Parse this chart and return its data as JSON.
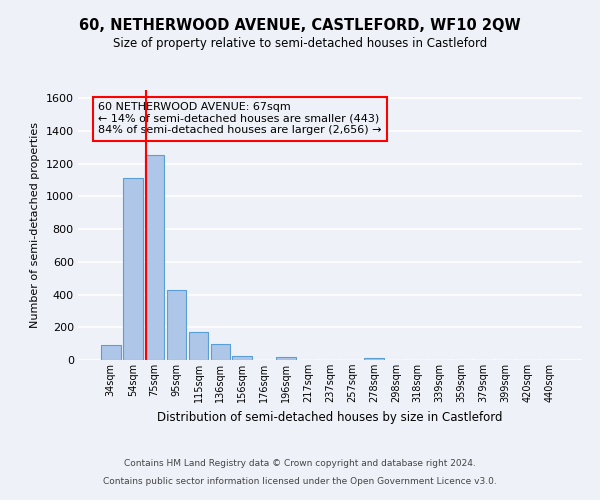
{
  "title": "60, NETHERWOOD AVENUE, CASTLEFORD, WF10 2QW",
  "subtitle": "Size of property relative to semi-detached houses in Castleford",
  "xlabel": "Distribution of semi-detached houses by size in Castleford",
  "ylabel": "Number of semi-detached properties",
  "categories": [
    "34sqm",
    "54sqm",
    "75sqm",
    "95sqm",
    "115sqm",
    "136sqm",
    "156sqm",
    "176sqm",
    "196sqm",
    "217sqm",
    "237sqm",
    "257sqm",
    "278sqm",
    "298sqm",
    "318sqm",
    "339sqm",
    "359sqm",
    "379sqm",
    "399sqm",
    "420sqm",
    "440sqm"
  ],
  "bar_values": [
    90,
    1110,
    1250,
    430,
    170,
    95,
    25,
    0,
    20,
    0,
    0,
    0,
    15,
    0,
    0,
    0,
    0,
    0,
    0,
    0,
    0
  ],
  "bar_color": "#aec6e8",
  "bar_edge_color": "#5a9fd4",
  "vline_color": "red",
  "annotation_text": "60 NETHERWOOD AVENUE: 67sqm\n← 14% of semi-detached houses are smaller (443)\n84% of semi-detached houses are larger (2,656) →",
  "annotation_box_color": "red",
  "ylim": [
    0,
    1650
  ],
  "yticks": [
    0,
    200,
    400,
    600,
    800,
    1000,
    1200,
    1400,
    1600
  ],
  "footer_line1": "Contains HM Land Registry data © Crown copyright and database right 2024.",
  "footer_line2": "Contains public sector information licensed under the Open Government Licence v3.0.",
  "bg_color": "#eef2f8",
  "grid_color": "#ffffff"
}
